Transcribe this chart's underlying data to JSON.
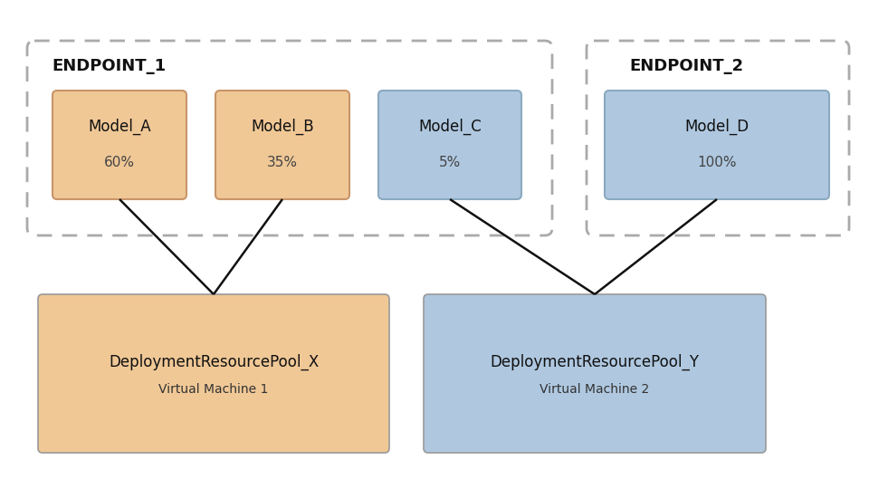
{
  "background_color": "#ffffff",
  "orange_color": "#F0C896",
  "blue_color": "#AFC8E0",
  "orange_edge": "#C8956A",
  "blue_edge": "#8AAAC0",
  "pool_edge": "#999999",
  "endpoint1_label": "ENDPOINT_1",
  "endpoint2_label": "ENDPOINT_2",
  "model_a": {
    "label": "Model_A",
    "pct": "60%"
  },
  "model_b": {
    "label": "Model_B",
    "pct": "35%"
  },
  "model_c": {
    "label": "Model_C",
    "pct": "5%"
  },
  "model_d": {
    "label": "Model_D",
    "pct": "100%"
  },
  "pool_x": {
    "label": "DeploymentResourcePool_X",
    "sublabel": "Virtual Machine 1"
  },
  "pool_y": {
    "label": "DeploymentResourcePool_Y",
    "sublabel": "Virtual Machine 2"
  },
  "dashed_color": "#aaaaaa",
  "line_color": "#111111",
  "figw": 9.6,
  "figh": 5.4,
  "dpi": 100
}
